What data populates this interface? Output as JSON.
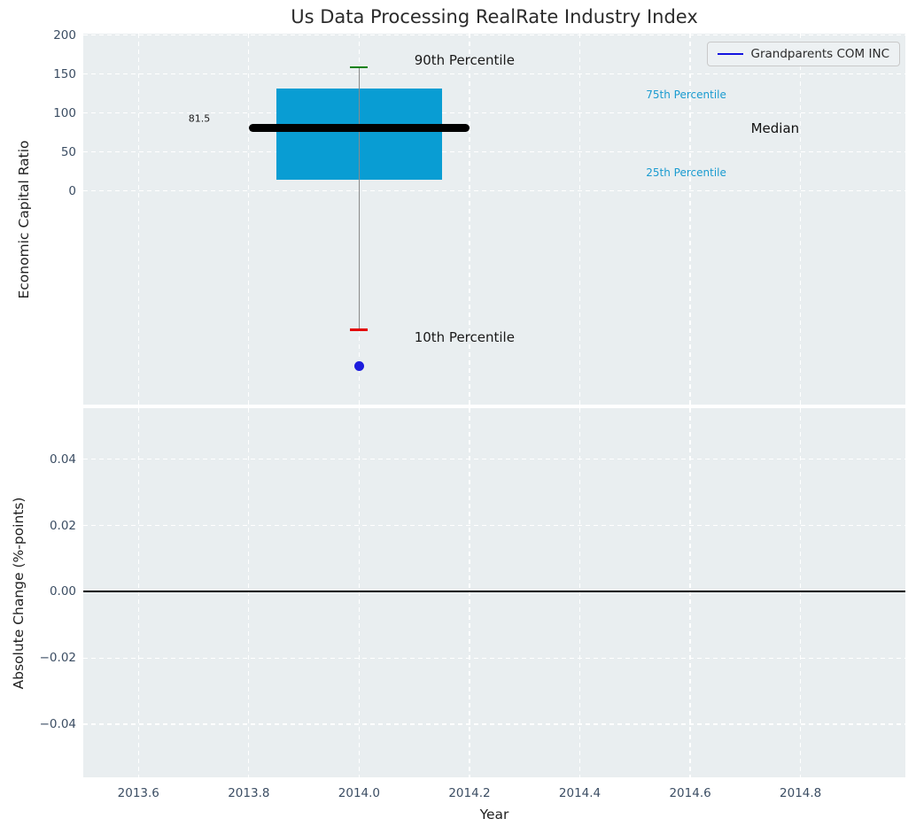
{
  "figure": {
    "background": "#ffffff",
    "axes_background": "#e9eef0"
  },
  "chart_data": [
    {
      "type": "box",
      "title": "Us Data Processing RealRate Industry Index",
      "ylabel": "Economic Capital Ratio",
      "xlim": [
        2013.5,
        2014.99
      ],
      "ylim": [
        -274,
        202
      ],
      "grid": true,
      "yticks": {
        "values": [
          200,
          150,
          100,
          50,
          0
        ],
        "labels": [
          "200",
          "150",
          "100",
          "50",
          "0"
        ]
      },
      "box": {
        "x": 2014.0,
        "box_halfwidth": 0.15,
        "median_halfwidth": 0.2,
        "cap_halfwidth": 0.016,
        "p90": 159,
        "p75": 131,
        "median": 81.5,
        "p25": 15,
        "p10": -178
      },
      "company_point": {
        "x": 2014.0,
        "y": -225,
        "color": "#1c1cdd"
      },
      "colors": {
        "box": "#099dd3",
        "median": "#000000",
        "p90_cap": "#0b800b",
        "p10_cap": "#e30000",
        "whisker": "#8a8a8a",
        "percentile_text": "#1a9bd0"
      },
      "legend": {
        "label": "Grandparents COM INC",
        "line_color": "#1414e0",
        "position": "upper right"
      },
      "annotations": [
        {
          "name": "annotation-90th-percentile",
          "text": "90th Percentile",
          "x": 2014.1,
          "y": 168,
          "color": "#1a1a1a",
          "size": 15,
          "align": "left"
        },
        {
          "name": "annotation-10th-percentile",
          "text": "10th Percentile",
          "x": 2014.1,
          "y": -188,
          "color": "#1a1a1a",
          "size": 15,
          "align": "left"
        },
        {
          "name": "annotation-75th-percentile",
          "text": "75th Percentile",
          "x": 2014.52,
          "y": 124,
          "color": "#1a9bd0",
          "size": 12,
          "align": "left"
        },
        {
          "name": "annotation-25th-percentile",
          "text": "25th Percentile",
          "x": 2014.52,
          "y": 24,
          "color": "#1a9bd0",
          "size": 12,
          "align": "left"
        },
        {
          "name": "annotation-median",
          "text": "Median",
          "x": 2014.71,
          "y": 81,
          "color": "#111111",
          "size": 15,
          "align": "left"
        },
        {
          "name": "annotation-median-value",
          "text": "81.5",
          "x": 2013.73,
          "y": 93,
          "color": "#1a1a1a",
          "size": 11,
          "align": "right"
        }
      ]
    },
    {
      "type": "line",
      "ylabel": "Absolute Change (%-points)",
      "xlabel": "Year",
      "xlim": [
        2013.5,
        2014.99
      ],
      "ylim": [
        -0.056,
        0.0554
      ],
      "grid": true,
      "zero_line": 0,
      "yticks": {
        "values": [
          0.04,
          0.02,
          0,
          -0.02,
          -0.04
        ],
        "labels": [
          "0.04",
          "0.02",
          "0.00",
          "−0.02",
          "−0.04"
        ]
      },
      "xticks": {
        "values": [
          2013.6,
          2013.8,
          2014.0,
          2014.2,
          2014.4,
          2014.6,
          2014.8
        ],
        "labels": [
          "2013.6",
          "2013.8",
          "2014.0",
          "2014.2",
          "2014.4",
          "2014.6",
          "2014.8"
        ]
      },
      "series": []
    }
  ]
}
